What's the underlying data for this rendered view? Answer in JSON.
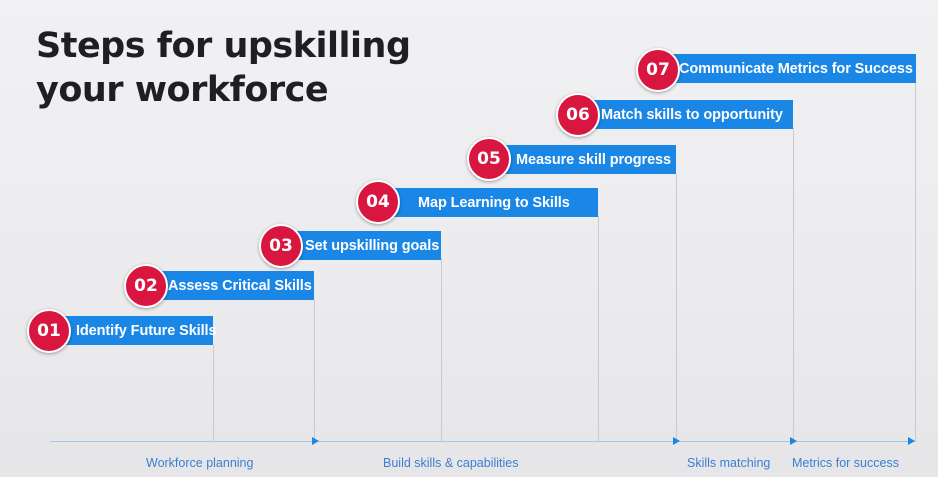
{
  "title": {
    "line1": "Steps for upskilling",
    "line2": "your workforce"
  },
  "steps": [
    {
      "number": "01",
      "label": "Identify Future Skills"
    },
    {
      "number": "02",
      "label": "Assess Critical Skills"
    },
    {
      "number": "03",
      "label": "Set upskilling goals"
    },
    {
      "number": "04",
      "label": "Map Learning to Skills"
    },
    {
      "number": "05",
      "label": "Measure skill progress"
    },
    {
      "number": "06",
      "label": "Match skills to opportunity"
    },
    {
      "number": "07",
      "label": "Communicate Metrics for Success"
    }
  ],
  "phases": [
    {
      "label": "Workforce planning"
    },
    {
      "label": "Build skills & capabilities"
    },
    {
      "label": "Skills matching"
    },
    {
      "label": "Metrics for success"
    }
  ],
  "colors": {
    "bar": "#1a86e6",
    "badge": "#d8163f",
    "title": "#1f1f23",
    "phase_text": "#3a7fd0"
  }
}
